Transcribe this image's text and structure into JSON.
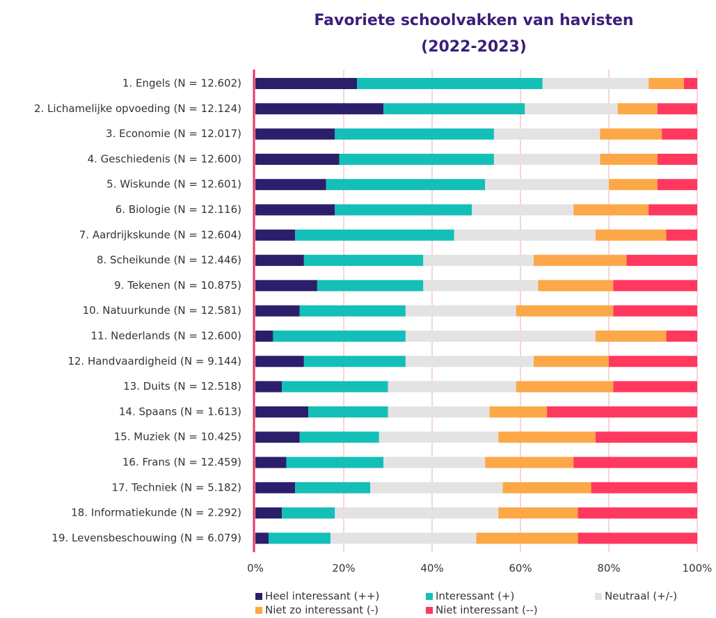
{
  "chart_data": {
    "type": "stacked_barh",
    "title": "Favoriete schoolvakken van havisten (2022-2023)",
    "categories": [
      "1. Engels (N = 12.602)",
      "2. Lichamelijke opvoeding (N = 12.124)",
      "3. Economie (N = 12.017)",
      "4. Geschiedenis (N = 12.600)",
      "5. Wiskunde (N = 12.601)",
      "6. Biologie (N = 12.116)",
      "7. Aardrijkskunde (N = 12.604)",
      "8. Scheikunde (N = 12.446)",
      "9. Tekenen (N = 10.875)",
      "10. Natuurkunde (N = 12.581)",
      "11. Nederlands (N = 12.600)",
      "12. Handvaardigheid (N = 9.144)",
      "13. Duits (N = 12.518)",
      "14. Spaans (N = 1.613)",
      "15. Muziek (N = 10.425)",
      "16. Frans (N = 12.459)",
      "17. Techniek (N = 5.182)",
      "18. Informatiekunde (N = 2.292)",
      "19. Levensbeschouwing (N = 6.079)"
    ],
    "series": [
      {
        "name": "Heel interessant (++)",
        "color": "#2b1f6b",
        "values": [
          23,
          29,
          18,
          19,
          16,
          18,
          9,
          11,
          14,
          10,
          4,
          11,
          6,
          12,
          10,
          7,
          9,
          6,
          3
        ]
      },
      {
        "name": "Interessant (+)",
        "color": "#14bfb7",
        "values": [
          42,
          32,
          36,
          35,
          36,
          31,
          36,
          27,
          24,
          24,
          30,
          23,
          24,
          18,
          18,
          22,
          17,
          12,
          14
        ]
      },
      {
        "name": "Neutraal (+/-)",
        "color": "#e3e3e3",
        "values": [
          24,
          21,
          24,
          24,
          28,
          23,
          32,
          25,
          26,
          25,
          43,
          29,
          29,
          23,
          27,
          23,
          30,
          37,
          33
        ]
      },
      {
        "name": "Niet zo interessant (-)",
        "color": "#fca848",
        "values": [
          8,
          9,
          14,
          13,
          11,
          17,
          16,
          21,
          17,
          22,
          16,
          17,
          22,
          13,
          22,
          20,
          20,
          18,
          23
        ]
      },
      {
        "name": "Niet interessant (--)",
        "color": "#ff3860",
        "values": [
          3,
          9,
          8,
          9,
          9,
          11,
          7,
          16,
          19,
          19,
          7,
          20,
          19,
          34,
          23,
          28,
          24,
          27,
          27
        ]
      }
    ],
    "xlim": [
      0,
      100
    ],
    "xticks": [
      {
        "value": 0,
        "label": "0%"
      },
      {
        "value": 20,
        "label": "20%"
      },
      {
        "value": 40,
        "label": "40%"
      },
      {
        "value": 60,
        "label": "60%"
      },
      {
        "value": 80,
        "label": "80%"
      },
      {
        "value": 100,
        "label": "100%"
      }
    ],
    "grid": true,
    "legend": "bottom"
  }
}
